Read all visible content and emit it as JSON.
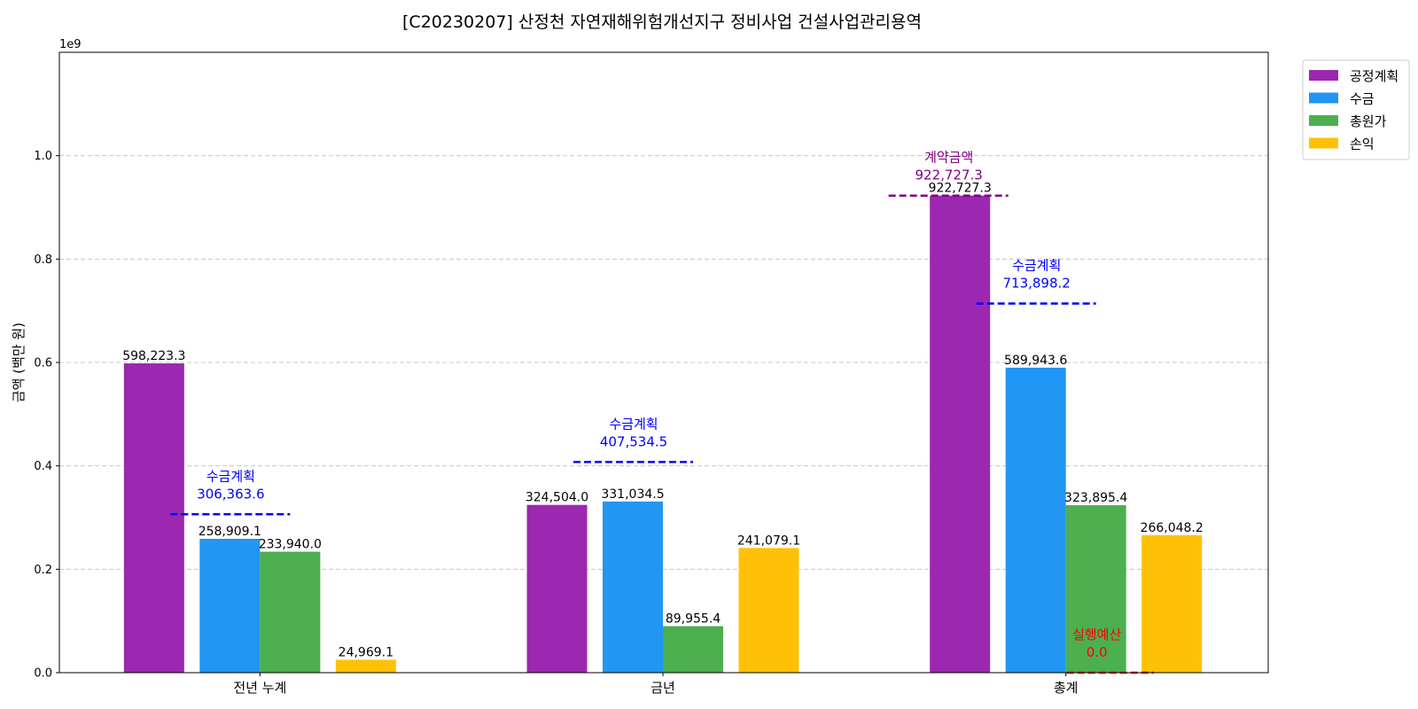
{
  "chart_data": {
    "type": "bar",
    "title": "[C20230207] 산정천 자연재해위험개선지구 정비사업 건설사업관리용역",
    "xlabel": "",
    "ylabel": "금액 (백만 원)",
    "y_offset_label": "1e9",
    "ylim": [
      0,
      1.2
    ],
    "yticks": [
      "0.0",
      "0.2",
      "0.4",
      "0.6",
      "0.8",
      "1.0"
    ],
    "grid": true,
    "legend_position": "outside top-right",
    "categories": [
      "전년 누계",
      "금년",
      "총계"
    ],
    "series": [
      {
        "name": "공정계획",
        "color": "#9c27b0",
        "values": [
          0.5982233,
          0.324504,
          0.9227273
        ],
        "labels": [
          "598,223.3",
          "324,504.0",
          "922,727.3"
        ]
      },
      {
        "name": "수금",
        "color": "#2196f3",
        "values": [
          0.2589091,
          0.3310345,
          0.5899436
        ],
        "labels": [
          "258,909.1",
          "331,034.5",
          "589,943.6"
        ]
      },
      {
        "name": "총원가",
        "color": "#4caf50",
        "values": [
          0.23394,
          0.0899554,
          0.3238954
        ],
        "labels": [
          "233,940.0",
          "89,955.4",
          "323,895.4"
        ]
      },
      {
        "name": "손익",
        "color": "#ffc107",
        "values": [
          0.0249691,
          0.2410791,
          0.2660482
        ],
        "labels": [
          "24,969.1",
          "241,079.1",
          "266,048.2"
        ]
      }
    ],
    "reference_lines": [
      {
        "category": 0,
        "value": 0.3063636,
        "color": "#0000ff",
        "name": "수금계획",
        "label": "306,363.6"
      },
      {
        "category": 1,
        "value": 0.4075345,
        "color": "#0000ff",
        "name": "수금계획",
        "label": "407,534.5"
      },
      {
        "category": 2,
        "value": 0.7138982,
        "color": "#0000ff",
        "name": "수금계획",
        "label": "713,898.2"
      },
      {
        "category": 2,
        "value": 0.9227273,
        "color": "#800080",
        "name": "계약금액",
        "label": "922,727.3"
      },
      {
        "category": 2,
        "value": 0.0,
        "color": "#ff0000",
        "name": "실행예산",
        "label": "0.0"
      }
    ]
  }
}
